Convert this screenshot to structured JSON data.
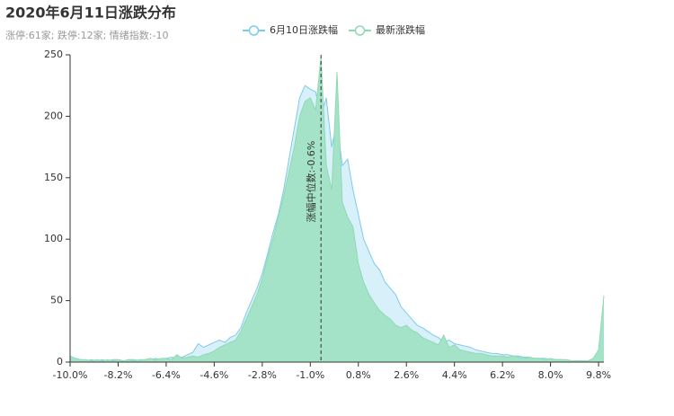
{
  "chart_data": {
    "type": "area",
    "title": "2020年6月11日涨跌分布",
    "subtitle": "涨停:61家; 跌停:12家; 情绪指数:-10",
    "x": [
      -10,
      -9.8,
      -9.6,
      -9.4,
      -9.2,
      -9,
      -8.8,
      -8.6,
      -8.4,
      -8.2,
      -8,
      -7.8,
      -7.6,
      -7.4,
      -7.2,
      -7,
      -6.8,
      -6.6,
      -6.4,
      -6.2,
      -6,
      -5.8,
      -5.6,
      -5.4,
      -5.2,
      -5,
      -4.8,
      -4.6,
      -4.4,
      -4.2,
      -4,
      -3.8,
      -3.6,
      -3.4,
      -3.2,
      -3,
      -2.8,
      -2.6,
      -2.4,
      -2.2,
      -2,
      -1.8,
      -1.6,
      -1.4,
      -1.2,
      -1,
      -0.8,
      -0.6,
      -0.4,
      -0.2,
      0,
      0.2,
      0.4,
      0.6,
      0.8,
      1,
      1.2,
      1.4,
      1.6,
      1.8,
      2,
      2.2,
      2.4,
      2.6,
      2.8,
      3,
      3.2,
      3.4,
      3.6,
      3.8,
      4,
      4.2,
      4.4,
      4.6,
      4.8,
      5,
      5.2,
      5.4,
      5.6,
      5.8,
      6,
      6.2,
      6.4,
      6.6,
      6.8,
      7,
      7.2,
      7.4,
      7.6,
      7.8,
      8,
      8.2,
      8.4,
      8.6,
      8.8,
      9,
      9.2,
      9.4,
      9.6,
      9.8,
      10
    ],
    "series": [
      {
        "name": "6月10日涨跌幅",
        "color": "#7ecbea",
        "fill": "#d4eef9",
        "values": [
          4,
          3,
          2,
          1,
          2,
          1,
          2,
          1,
          2,
          2,
          1,
          2,
          2,
          1,
          2,
          2,
          3,
          2,
          3,
          4,
          3,
          4,
          6,
          8,
          15,
          12,
          14,
          16,
          18,
          16,
          20,
          22,
          28,
          40,
          50,
          60,
          72,
          88,
          105,
          120,
          140,
          165,
          190,
          215,
          225,
          222,
          220,
          200,
          215,
          175,
          195,
          160,
          165,
          140,
          120,
          100,
          90,
          80,
          75,
          65,
          60,
          55,
          45,
          40,
          35,
          30,
          28,
          25,
          22,
          20,
          16,
          18,
          15,
          14,
          13,
          12,
          10,
          9,
          8,
          7,
          7,
          6,
          6,
          5,
          5,
          4,
          4,
          3,
          3,
          3,
          2,
          2,
          2,
          1,
          1,
          1,
          1,
          1,
          1,
          2,
          5
        ]
      },
      {
        "name": "最新涨跌幅",
        "color": "#8fdab2",
        "fill": "#a4e3c7",
        "values": [
          5,
          3,
          2,
          2,
          1,
          2,
          1,
          2,
          1,
          2,
          1,
          2,
          1,
          2,
          2,
          3,
          2,
          3,
          3,
          2,
          6,
          3,
          4,
          5,
          4,
          6,
          7,
          9,
          12,
          14,
          16,
          18,
          25,
          35,
          45,
          55,
          68,
          85,
          100,
          118,
          135,
          155,
          175,
          200,
          212,
          215,
          205,
          248,
          160,
          140,
          236,
          130,
          118,
          110,
          80,
          65,
          55,
          48,
          42,
          38,
          35,
          30,
          28,
          30,
          26,
          24,
          20,
          18,
          16,
          14,
          22,
          12,
          14,
          10,
          9,
          8,
          7,
          7,
          6,
          5,
          5,
          5,
          4,
          5,
          4,
          3,
          4,
          3,
          3,
          2,
          3,
          2,
          2,
          2,
          1,
          1,
          1,
          1,
          3,
          10,
          54
        ]
      }
    ],
    "markline": {
      "value": -0.6,
      "label": "涨幅中位数:-0.6%"
    },
    "xlim": [
      -10,
      10
    ],
    "xticks": [
      {
        "value": -10,
        "label": "-10.0%"
      },
      {
        "value": -8.2,
        "label": "-8.2%"
      },
      {
        "value": -6.4,
        "label": "-6.4%"
      },
      {
        "value": -4.6,
        "label": "-4.6%"
      },
      {
        "value": -2.8,
        "label": "-2.8%"
      },
      {
        "value": -1,
        "label": "-1.0%"
      },
      {
        "value": 0.8,
        "label": "0.8%"
      },
      {
        "value": 2.6,
        "label": "2.6%"
      },
      {
        "value": 4.4,
        "label": "4.4%"
      },
      {
        "value": 6.2,
        "label": "6.2%"
      },
      {
        "value": 8,
        "label": "8.0%"
      },
      {
        "value": 9.8,
        "label": "9.8%"
      }
    ],
    "ylim": [
      0,
      250
    ],
    "yticks": [
      0,
      50,
      100,
      150,
      200,
      250
    ],
    "grid": false
  }
}
